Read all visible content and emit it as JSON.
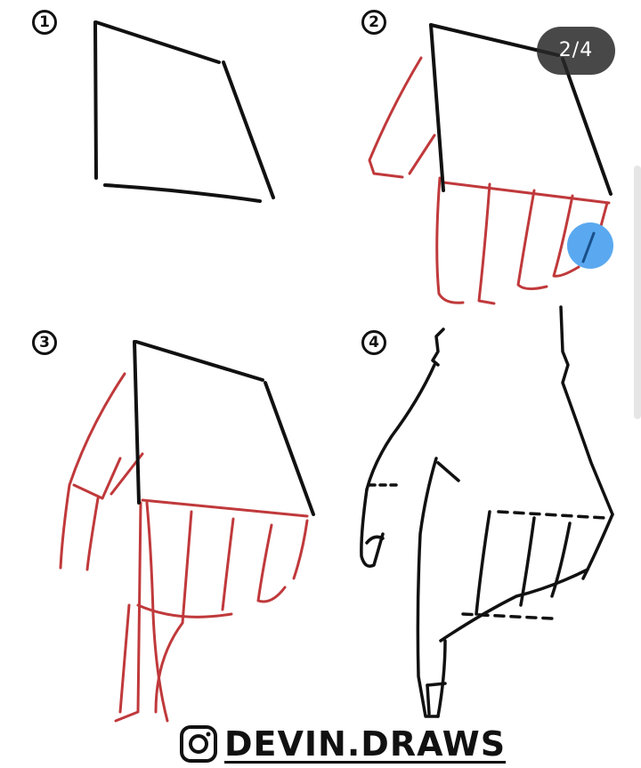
{
  "pager": {
    "label": "2/4"
  },
  "steps": [
    {
      "number": "1"
    },
    {
      "number": "2"
    },
    {
      "number": "3"
    },
    {
      "number": "4"
    }
  ],
  "watermark": {
    "handle": "DEVIN.DRAWS",
    "icon": "instagram-icon"
  },
  "colors": {
    "ink": "#111111",
    "guide": "#c0393b",
    "accent": "#5aa9f0"
  }
}
